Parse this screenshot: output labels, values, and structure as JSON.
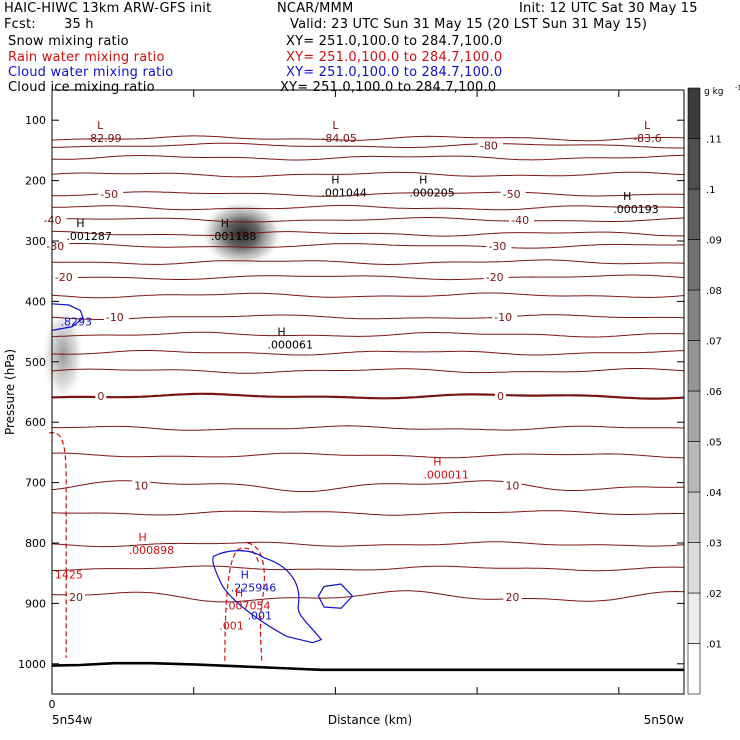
{
  "header": {
    "title_left": "HAIC-HIWC 13km ARW-GFS init",
    "org": "NCAR/MMM",
    "init": "Init: 12 UTC Sat 30 May 15",
    "fcst_label": "Fcst:",
    "fcst_value": "35 h",
    "valid": "Valid: 23 UTC Sun 31 May 15 (20 LST Sun 31 May 15)"
  },
  "fields": [
    {
      "name": "Snow mixing ratio",
      "xy": "XY= 251.0,100.0 to 284.7,100.0",
      "color": "#000000"
    },
    {
      "name": "Rain water mixing ratio",
      "xy": "XY= 251.0,100.0 to 284.7,100.0",
      "color": "#d01010"
    },
    {
      "name": "Cloud water mixing ratio",
      "xy": "XY= 251.0,100.0 to 284.7,100.0",
      "color": "#1010d0"
    },
    {
      "name": "Cloud ice mixing ratio",
      "xy": "XY= 251.0,100.0 to 284.7,100.0",
      "color": "#000000"
    }
  ],
  "colors": {
    "temperature": "#7a1414",
    "rain": "#d01010",
    "cloud_water": "#1010d0",
    "terrain": "#000000"
  },
  "chart_data": {
    "type": "contour",
    "xlabel": "Distance (km)",
    "ylabel": "Pressure (hPa)",
    "x_tick_first": "0",
    "x_ticks": [
      0,
      50,
      100,
      150,
      200
    ],
    "x_endpoint_labels": [
      "5n54w",
      "5n50w"
    ],
    "xlim": [
      0,
      223
    ],
    "y_ticks": [
      100,
      200,
      300,
      400,
      500,
      600,
      700,
      800,
      900,
      1000
    ],
    "ylim": [
      1050,
      50
    ],
    "colorbar": {
      "unit": "g kg",
      "unit_exp": "-1",
      "levels": [
        ".01",
        ".02",
        ".03",
        ".04",
        ".05",
        ".06",
        ".07",
        ".08",
        ".09",
        ".1",
        ".11"
      ],
      "values": [
        0.01,
        0.02,
        0.03,
        0.04,
        0.05,
        0.06,
        0.07,
        0.08,
        0.09,
        0.1,
        0.11
      ]
    },
    "temperature_contours": [
      {
        "label": "-80",
        "p": 142,
        "lx": [
          151
        ]
      },
      {
        "label": "-50",
        "p": 222,
        "lx": [
          17,
          159
        ]
      },
      {
        "label": "-40",
        "p": 265,
        "lx": [
          -3,
          162
        ]
      },
      {
        "label": "-30",
        "p": 308,
        "lx": [
          -2,
          154
        ]
      },
      {
        "label": "-20",
        "p": 360,
        "lx": [
          1,
          153
        ]
      },
      {
        "label": "-10",
        "p": 426,
        "lx": [
          19,
          156
        ]
      },
      {
        "label": "0",
        "p": 557,
        "lx": [
          16,
          157
        ]
      },
      {
        "label": "10",
        "p": 705,
        "lx": [
          29,
          160
        ]
      },
      {
        "label": "20",
        "p": 889,
        "lx": [
          6,
          160
        ]
      }
    ],
    "extra_temperature_lines_p": [
      130,
      162,
      190,
      245,
      288,
      335,
      390,
      455,
      485,
      515,
      610,
      655,
      750,
      802,
      842
    ],
    "extremes": [
      {
        "type": "L",
        "value": "-82.99",
        "x": 17,
        "p": 128,
        "color": "temperature"
      },
      {
        "type": "L",
        "value": "-84.05",
        "x": 100,
        "p": 128,
        "color": "temperature"
      },
      {
        "type": "L",
        "value": "-83.6",
        "x": 210,
        "p": 128,
        "color": "temperature"
      },
      {
        "type": "H",
        "value": ".001044",
        "x": 100,
        "p": 218,
        "color": "terrain"
      },
      {
        "type": "H",
        "value": ".000205",
        "x": 131,
        "p": 218,
        "color": "terrain"
      },
      {
        "type": "H",
        "value": ".000193",
        "x": 203,
        "p": 245,
        "color": "terrain"
      },
      {
        "type": "H",
        "value": ".001287",
        "x": 10,
        "p": 290,
        "color": "terrain"
      },
      {
        "type": "H",
        "value": ".001188",
        "x": 61,
        "p": 290,
        "color": "terrain"
      },
      {
        "type": "H",
        "value": ".000061",
        "x": 81,
        "p": 470,
        "color": "terrain"
      },
      {
        "type": "H",
        "value": ".000011",
        "x": 136,
        "p": 685,
        "color": "rain"
      },
      {
        "type": "H",
        "value": ".000898",
        "x": 32,
        "p": 810,
        "color": "rain"
      },
      {
        "type": "H",
        "value": ".225946",
        "x": 68,
        "p": 872,
        "color": "cloud_water"
      },
      {
        "type": "H",
        "value": ".007054",
        "x": 66,
        "p": 902,
        "color": "rain"
      }
    ],
    "isolated_labels": [
      {
        "text": ".8293",
        "x": 3,
        "p": 440,
        "color": "cloud_water"
      },
      {
        "text": "1425",
        "x": 1,
        "p": 859,
        "color": "rain"
      },
      {
        "text": ".001",
        "x": 59,
        "p": 943,
        "color": "rain"
      },
      {
        "text": ".001",
        "x": 69,
        "p": 927,
        "color": "cloud_water"
      }
    ],
    "snow_maxima": [
      {
        "x": 67,
        "p": 288,
        "value": 0.11
      },
      {
        "x": 6,
        "p": 508,
        "value": 0.06
      }
    ]
  }
}
